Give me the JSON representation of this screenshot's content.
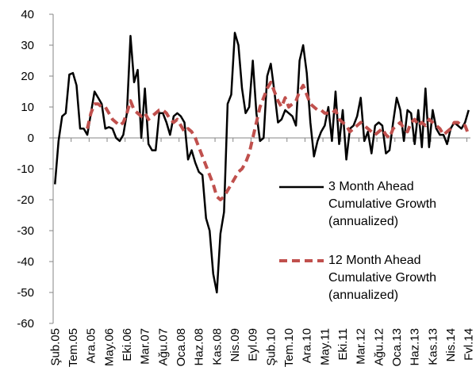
{
  "chart_data": {
    "type": "line",
    "categories": [
      "Şub.05",
      null,
      null,
      null,
      null,
      "Tem.05",
      null,
      null,
      null,
      null,
      "Ara.05",
      null,
      null,
      null,
      null,
      "May.06",
      null,
      null,
      null,
      null,
      "Eki.06",
      null,
      null,
      null,
      null,
      "Mar.07",
      null,
      null,
      null,
      null,
      "Ağu.07",
      null,
      null,
      null,
      null,
      "Oca.08",
      null,
      null,
      null,
      null,
      "Haz.08",
      null,
      null,
      null,
      null,
      "Kas.08",
      null,
      null,
      null,
      null,
      "Nis.09",
      null,
      null,
      null,
      null,
      "Eyl.09",
      null,
      null,
      null,
      null,
      "Şub.10",
      null,
      null,
      null,
      null,
      "Tem.10",
      null,
      null,
      null,
      null,
      "Ara.10",
      null,
      null,
      null,
      null,
      "May.11",
      null,
      null,
      null,
      null,
      "Eki.11",
      null,
      null,
      null,
      null,
      "Mar.12",
      null,
      null,
      null,
      null,
      "Ağu.12",
      null,
      null,
      null,
      null,
      "Oca.13",
      null,
      null,
      null,
      null,
      "Haz.13",
      null,
      null,
      null,
      null,
      "Kas.13",
      null,
      null,
      null,
      null,
      "Nis.14",
      null,
      null,
      null,
      null,
      "Fvl.14"
    ],
    "series": [
      {
        "name": "3 Month Ahead Cumulative Growth (annualized)",
        "color": "#000000",
        "dash": false,
        "values": [
          -15,
          -1,
          7,
          8,
          20.5,
          21,
          17,
          3,
          3,
          1,
          8,
          15,
          13,
          11,
          3,
          3.5,
          3,
          0,
          -1,
          1,
          8,
          33,
          18,
          22,
          0,
          16,
          -2,
          -4,
          -4,
          8,
          8,
          5,
          1,
          7,
          8,
          7,
          5,
          -7,
          -4,
          -8,
          -11,
          -12,
          -26,
          -30,
          -44,
          -50,
          -31,
          -24,
          11,
          14,
          34,
          30,
          16,
          8,
          10,
          25,
          8,
          -1,
          0,
          20,
          24,
          15,
          5,
          6,
          9,
          8,
          7,
          4,
          25,
          30,
          21,
          5,
          -6,
          -1,
          2,
          4,
          10,
          -1,
          15,
          -2,
          9,
          -7,
          3,
          4,
          7,
          13,
          -1,
          2,
          -5,
          4,
          5,
          4,
          -5,
          -4,
          5,
          13,
          9,
          -1,
          9,
          8,
          -2,
          9,
          -3,
          16,
          -3,
          9,
          3,
          1,
          1,
          -2,
          3,
          5,
          4,
          3,
          5,
          9
        ]
      },
      {
        "name": "12 Month Ahead Cumulative Growth (annualized)",
        "color": "#c0504d",
        "dash": true,
        "values": [
          null,
          null,
          null,
          null,
          null,
          null,
          null,
          null,
          null,
          3,
          8,
          11,
          11,
          10,
          10,
          8,
          6,
          5,
          4,
          5,
          8,
          12,
          9,
          8,
          7,
          8,
          6,
          7,
          8,
          9,
          9,
          8,
          6,
          5,
          6,
          4,
          2,
          3,
          2,
          0,
          -3,
          -6,
          -9,
          -12,
          -15,
          -19,
          -20,
          -19,
          -17,
          -15,
          -13,
          -11,
          -10,
          -8,
          -5,
          0,
          5,
          10,
          13,
          16,
          18,
          15,
          12,
          10,
          13,
          10,
          11,
          12,
          15,
          17,
          14,
          11,
          10,
          9,
          9,
          8,
          8,
          8,
          9,
          6,
          5,
          4,
          2,
          3,
          4,
          5,
          4,
          3,
          2,
          1,
          2,
          3,
          1,
          0,
          3,
          4,
          5,
          3,
          2,
          5,
          6,
          4,
          5,
          4,
          6,
          5,
          4,
          3,
          1,
          2,
          3,
          5,
          5,
          4,
          4,
          1
        ]
      }
    ],
    "ylim": [
      -60,
      40
    ],
    "yticks": [
      -60,
      -50,
      -40,
      -30,
      -20,
      -10,
      0,
      10,
      20,
      30,
      40
    ],
    "grid": false,
    "legend": "right"
  }
}
